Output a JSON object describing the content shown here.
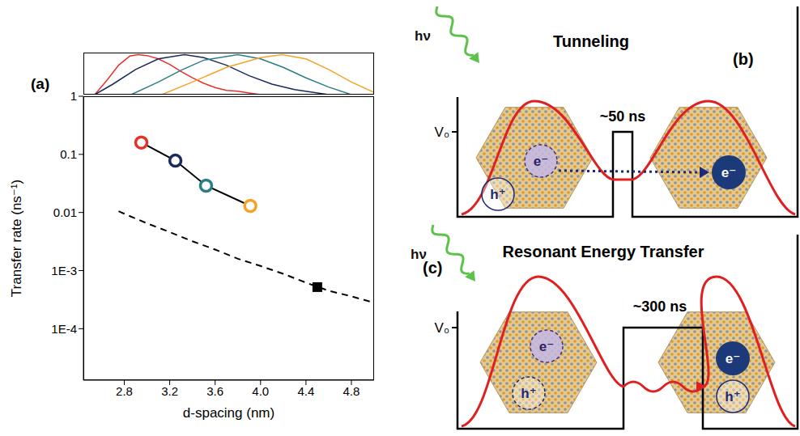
{
  "chart_data": [
    {
      "panel": "(a)",
      "type": "line",
      "x_label": "d-spacing (nm)",
      "y_label": "Transfer rate (ns⁻¹)",
      "log": "y",
      "grid": false,
      "xlim": [
        2.44,
        5.0
      ],
      "ylim": [
        1.3e-05,
        1
      ],
      "xticks": [
        2.8,
        3.2,
        3.6,
        {
          "value": 4,
          "label": "4.0"
        },
        4.4,
        4.8
      ],
      "yticks": [
        {
          "value": 0.0001,
          "label": "1E-4"
        },
        {
          "value": 0.001,
          "label": "1E-3"
        },
        0.01,
        0.1,
        1
      ],
      "series": [
        {
          "type": "line",
          "line_style": "dashed",
          "marker": "none",
          "color": "#000000",
          "x": [
            2.75,
            2.8,
            3.0,
            3.2,
            3.4,
            3.6,
            3.8,
            4.0,
            4.2,
            4.4,
            4.6,
            4.8,
            5.0
          ],
          "values": [
            0.0105,
            0.0095,
            0.0065,
            0.0046,
            0.0032,
            0.0023,
            0.0016,
            0.0012,
            0.00088,
            0.00062,
            0.00045,
            0.00036,
            0.00028
          ]
        },
        {
          "type": "scatter",
          "marker": "square",
          "color": "#000000",
          "x": [
            4.5
          ],
          "values": [
            0.00052
          ]
        },
        {
          "type": "line",
          "line_style": "solid",
          "marker": "circle",
          "color": "#000000",
          "colors": [
            "#e8302a",
            "#1b2a5c",
            "#2b7d86",
            "#f5a328"
          ],
          "x": [
            2.95,
            3.25,
            3.52,
            3.91
          ],
          "values": [
            0.16,
            0.078,
            0.029,
            0.013
          ]
        }
      ]
    },
    {
      "type": "line",
      "tick_labels": false,
      "xlim": [
        2.44,
        5.0
      ],
      "ylim": [
        0,
        1
      ],
      "series": [
        {
          "color": "#e8302a",
          "x": [
            2.54,
            2.65,
            2.75,
            2.85,
            2.92,
            3.0,
            3.1,
            3.2,
            3.3,
            3.4,
            3.5,
            3.6,
            3.7,
            3.8,
            3.9,
            4.0
          ],
          "values": [
            0,
            0.35,
            0.7,
            0.92,
            0.95,
            0.93,
            0.85,
            0.72,
            0.55,
            0.4,
            0.27,
            0.17,
            0.1,
            0.08,
            0.04,
            0
          ]
        },
        {
          "color": "#1b2a5c",
          "x": [
            2.54,
            2.7,
            2.9,
            3.1,
            3.33,
            3.5,
            3.7,
            3.9,
            4.1,
            4.3,
            4.6
          ],
          "values": [
            0,
            0.25,
            0.6,
            0.85,
            0.95,
            0.88,
            0.7,
            0.45,
            0.25,
            0.12,
            0
          ]
        },
        {
          "color": "#2b7d86",
          "x": [
            2.86,
            3.1,
            3.3,
            3.5,
            3.8,
            4.0,
            4.2,
            4.4,
            4.6,
            4.8
          ],
          "values": [
            0,
            0.3,
            0.58,
            0.82,
            0.95,
            0.85,
            0.65,
            0.4,
            0.18,
            0
          ]
        },
        {
          "color": "#f5a328",
          "x": [
            3.13,
            3.4,
            3.7,
            4.0,
            4.19,
            4.4,
            4.6,
            4.8,
            5.0
          ],
          "values": [
            0,
            0.3,
            0.65,
            0.88,
            0.95,
            0.85,
            0.6,
            0.3,
            0.05
          ]
        }
      ]
    }
  ],
  "diagrams": [
    {
      "panel": "(b)",
      "title": "Tunneling",
      "photon": "hν",
      "barrier": "V₀",
      "time": "~50 ns",
      "left_particles": [
        "e⁻",
        "h⁺"
      ],
      "right_particles": [
        "e⁻"
      ]
    },
    {
      "panel": "(c)",
      "title": "Resonant Energy Transfer",
      "photon": "hν",
      "barrier": "V₀",
      "time": "~300 ns",
      "left_particles": [
        "e⁻",
        "h⁺"
      ],
      "right_particles": [
        "e⁻",
        "h⁺"
      ]
    }
  ]
}
